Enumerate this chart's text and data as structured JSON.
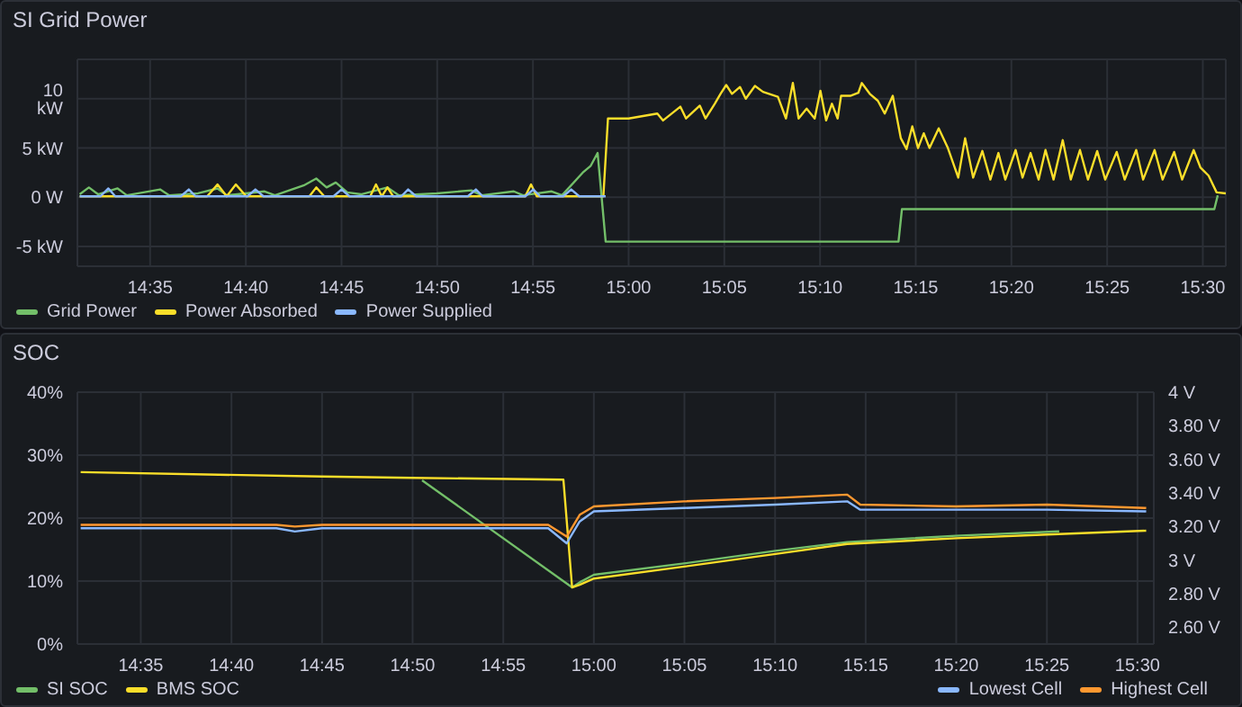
{
  "chart_data": [
    {
      "type": "line",
      "title": "SI Grid Power",
      "xlim": [
        14.52,
        15.52
      ],
      "ylim": [
        -7,
        14
      ],
      "xticks": [
        {
          "value": 14.5833,
          "label": "14:35"
        },
        {
          "value": 14.6667,
          "label": "14:40"
        },
        {
          "value": 14.75,
          "label": "14:45"
        },
        {
          "value": 14.8333,
          "label": "14:50"
        },
        {
          "value": 14.9167,
          "label": "14:55"
        },
        {
          "value": 15,
          "label": "15:00"
        },
        {
          "value": 15.0833,
          "label": "15:05"
        },
        {
          "value": 15.1667,
          "label": "15:10"
        },
        {
          "value": 15.25,
          "label": "15:15"
        },
        {
          "value": 15.3333,
          "label": "15:20"
        },
        {
          "value": 15.4167,
          "label": "15:25"
        },
        {
          "value": 15.5,
          "label": "15:30"
        }
      ],
      "yticks": [
        {
          "value": -5,
          "label": "-5 kW"
        },
        {
          "value": 0,
          "label": "0 W"
        },
        {
          "value": 5,
          "label": "5 kW"
        },
        {
          "value": 10,
          "label": "10 kW"
        }
      ],
      "grid": true,
      "legend": "bottom",
      "marker": "none",
      "line_style": "solid",
      "series": [
        {
          "name": "Grid Power",
          "color": "#73bf69",
          "x": [
            14.522,
            14.53,
            14.538,
            14.555,
            14.563,
            14.592,
            14.6,
            14.625,
            14.642,
            14.65,
            14.683,
            14.692,
            14.717,
            14.728,
            14.737,
            14.745,
            14.755,
            14.767,
            14.79,
            14.8,
            14.833,
            14.863,
            14.872,
            14.9,
            14.908,
            14.933,
            14.942,
            14.96,
            14.967,
            14.973,
            14.98,
            15.235,
            15.238,
            15.51,
            15.513
          ],
          "values": [
            0.3,
            1.0,
            0.3,
            0.9,
            0.2,
            0.8,
            0.2,
            0.4,
            0.9,
            0.2,
            0.6,
            0.2,
            1.2,
            1.9,
            1.0,
            1.5,
            0.5,
            0.3,
            1.0,
            0.2,
            0.4,
            0.7,
            0.2,
            0.6,
            0.2,
            0.6,
            0.2,
            2.5,
            3.2,
            4.5,
            -4.5,
            -4.5,
            -1.2,
            -1.2,
            0.2
          ]
        },
        {
          "name": "Power Absorbed",
          "color": "#fade2a",
          "x": [
            14.522,
            14.633,
            14.642,
            14.65,
            14.658,
            14.667,
            14.722,
            14.728,
            14.735,
            14.775,
            14.78,
            14.785,
            14.79,
            14.795,
            14.91,
            14.915,
            14.92,
            14.978,
            14.982,
            15.0,
            15.025,
            15.03,
            15.045,
            15.05,
            15.062,
            15.067,
            15.075,
            15.08,
            15.085,
            15.09,
            15.097,
            15.102,
            15.11,
            15.117,
            15.13,
            15.137,
            15.143,
            15.148,
            15.155,
            15.162,
            15.167,
            15.172,
            15.177,
            15.182,
            15.185,
            15.193,
            15.2,
            15.203,
            15.21,
            15.217,
            15.223,
            15.23,
            15.237,
            15.242,
            15.247,
            15.252,
            15.257,
            15.262,
            15.27,
            15.278,
            15.287,
            15.293,
            15.3,
            15.308,
            15.315,
            15.322,
            15.328,
            15.337,
            15.343,
            15.35,
            15.357,
            15.363,
            15.37,
            15.378,
            15.385,
            15.393,
            15.4,
            15.408,
            15.415,
            15.425,
            15.432,
            15.442,
            15.448,
            15.458,
            15.465,
            15.475,
            15.482,
            15.492,
            15.498,
            15.505,
            15.512,
            15.52
          ],
          "values": [
            0.1,
            0.1,
            1.3,
            0.1,
            1.3,
            0.1,
            0.1,
            1.0,
            0.1,
            0.1,
            1.3,
            0.1,
            1.0,
            0.1,
            0.1,
            1.3,
            0.1,
            0.1,
            8.0,
            8.0,
            8.5,
            7.8,
            9.2,
            8.0,
            9.3,
            8.0,
            9.5,
            10.5,
            11.4,
            10.5,
            11.2,
            10.0,
            11.3,
            10.7,
            10.2,
            8.0,
            11.6,
            8.0,
            9.0,
            8.0,
            10.8,
            7.8,
            9.5,
            8.0,
            10.3,
            10.3,
            10.6,
            11.6,
            10.5,
            9.8,
            8.5,
            10.3,
            6.0,
            4.9,
            7.2,
            5.0,
            6.5,
            5.0,
            7.0,
            5.0,
            2.0,
            6.0,
            2.0,
            4.7,
            1.8,
            4.5,
            1.8,
            4.8,
            2.0,
            4.5,
            1.8,
            4.8,
            1.8,
            5.8,
            1.8,
            4.8,
            1.8,
            4.7,
            1.8,
            4.6,
            1.8,
            4.8,
            1.8,
            4.8,
            1.8,
            4.6,
            1.8,
            4.8,
            3.0,
            2.2,
            0.5,
            0.4
          ]
        },
        {
          "name": "Power Supplied",
          "color": "#8ab8ff",
          "x": [
            14.522,
            14.54,
            14.547,
            14.553,
            14.61,
            14.617,
            14.623,
            14.668,
            14.675,
            14.682,
            14.743,
            14.75,
            14.757,
            14.802,
            14.808,
            14.815,
            14.86,
            14.867,
            14.873,
            14.91,
            14.917,
            14.923,
            14.943,
            14.95,
            14.957,
            14.98
          ],
          "values": [
            0.1,
            0.1,
            0.9,
            0.1,
            0.1,
            0.8,
            0.1,
            0.1,
            0.8,
            0.1,
            0.1,
            0.8,
            0.1,
            0.1,
            0.8,
            0.1,
            0.1,
            0.8,
            0.1,
            0.1,
            0.8,
            0.1,
            0.1,
            0.8,
            0.1,
            0.1
          ]
        }
      ]
    },
    {
      "type": "line",
      "title": "SOC",
      "xlim": [
        14.525,
        15.515
      ],
      "ylim": [
        0,
        40
      ],
      "y2lim": [
        2.5,
        4
      ],
      "xticks": [
        {
          "value": 14.5833,
          "label": "14:35"
        },
        {
          "value": 14.6667,
          "label": "14:40"
        },
        {
          "value": 14.75,
          "label": "14:45"
        },
        {
          "value": 14.8333,
          "label": "14:50"
        },
        {
          "value": 14.9167,
          "label": "14:55"
        },
        {
          "value": 15,
          "label": "15:00"
        },
        {
          "value": 15.0833,
          "label": "15:05"
        },
        {
          "value": 15.1667,
          "label": "15:10"
        },
        {
          "value": 15.25,
          "label": "15:15"
        },
        {
          "value": 15.3333,
          "label": "15:20"
        },
        {
          "value": 15.4167,
          "label": "15:25"
        },
        {
          "value": 15.5,
          "label": "15:30"
        }
      ],
      "yticks": [
        {
          "value": 0,
          "label": "0%"
        },
        {
          "value": 10,
          "label": "10%"
        },
        {
          "value": 20,
          "label": "20%"
        },
        {
          "value": 30,
          "label": "30%"
        },
        {
          "value": 40,
          "label": "40%"
        }
      ],
      "y2ticks": [
        {
          "value": 2.6,
          "label": "2.60 V"
        },
        {
          "value": 2.8,
          "label": "2.80 V"
        },
        {
          "value": 3,
          "label": "3 V"
        },
        {
          "value": 3.2,
          "label": "3.20 V"
        },
        {
          "value": 3.4,
          "label": "3.40 V"
        },
        {
          "value": 3.6,
          "label": "3.60 V"
        },
        {
          "value": 3.8,
          "label": "3.80 V"
        },
        {
          "value": 4,
          "label": "4 V"
        }
      ],
      "grid": true,
      "legend": "bottom",
      "marker": "none",
      "line_style": "solid",
      "series": [
        {
          "name": "SI SOC",
          "color": "#73bf69",
          "x": [
            14.842,
            14.98,
            14.987,
            15.0,
            15.083,
            15.167,
            15.233,
            15.333,
            15.428
          ],
          "values": [
            26.0,
            9.0,
            9.8,
            11.0,
            12.8,
            14.8,
            16.2,
            17.2,
            17.9
          ]
        },
        {
          "name": "BMS SOC",
          "color": "#fade2a",
          "x": [
            14.528,
            14.75,
            14.833,
            14.972,
            14.98,
            14.987,
            15.0,
            15.083,
            15.167,
            15.233,
            15.333,
            15.417,
            15.508
          ],
          "values": [
            27.3,
            26.6,
            26.4,
            26.1,
            9.0,
            9.4,
            10.4,
            12.3,
            14.3,
            15.9,
            16.8,
            17.4,
            18.0
          ]
        },
        {
          "name": "Lowest Cell",
          "color": "#8ab8ff",
          "axis": "y2",
          "x": [
            14.528,
            14.708,
            14.725,
            14.75,
            14.958,
            14.975,
            14.987,
            15.0,
            15.083,
            15.167,
            15.233,
            15.245,
            15.333,
            15.417,
            15.508
          ],
          "values": [
            3.19,
            3.19,
            3.17,
            3.19,
            3.19,
            3.1,
            3.23,
            3.29,
            3.31,
            3.33,
            3.35,
            3.3,
            3.3,
            3.3,
            3.29
          ]
        },
        {
          "name": "Highest Cell",
          "color": "#ff9830",
          "axis": "y2",
          "x": [
            14.528,
            14.708,
            14.725,
            14.75,
            14.958,
            14.975,
            14.987,
            15.0,
            15.083,
            15.167,
            15.233,
            15.245,
            15.333,
            15.417,
            15.508
          ],
          "values": [
            3.21,
            3.21,
            3.2,
            3.21,
            3.21,
            3.14,
            3.27,
            3.32,
            3.35,
            3.37,
            3.39,
            3.33,
            3.32,
            3.33,
            3.31
          ]
        }
      ]
    }
  ]
}
